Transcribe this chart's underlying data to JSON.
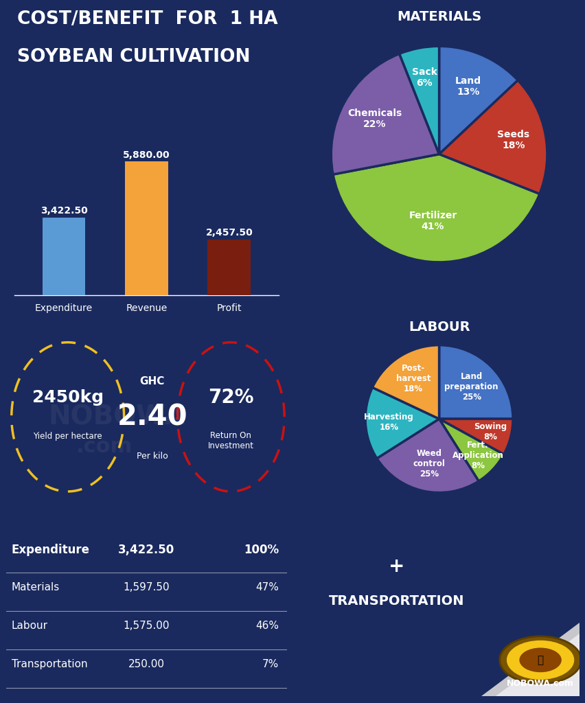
{
  "bg_color": "#1a2a5e",
  "title_line1": "COST/BENEFIT  FOR  1 HA",
  "title_line2": "SOYBEAN CULTIVATION",
  "bar_categories": [
    "Expenditure",
    "Revenue",
    "Profit"
  ],
  "bar_values": [
    3422.5,
    5880.0,
    2457.5
  ],
  "bar_colors": [
    "#5b9bd5",
    "#f4a23a",
    "#7a1e10"
  ],
  "bar_labels": [
    "3,422.50",
    "5,880.00",
    "2,457.50"
  ],
  "materials_title": "MATERIALS",
  "materials_values": [
    13,
    18,
    41,
    22,
    6
  ],
  "materials_labels": [
    "Land\n13%",
    "Seeds\n18%",
    "Fertilizer\n41%",
    "Chemicals\n22%",
    "Sack\n6%"
  ],
  "materials_colors": [
    "#4472c4",
    "#c0392b",
    "#8dc63f",
    "#7b5ea7",
    "#2cb5c0"
  ],
  "labour_title": "LABOUR",
  "labour_values": [
    25,
    8,
    8,
    25,
    16,
    18
  ],
  "labour_labels": [
    "Land\npreparation\n25%",
    "Sowing\n8%",
    "Fert.\nApplication\n8%",
    "Weed\ncontrol\n25%",
    "Harvesting\n16%",
    "Post-\nharvest\n18%"
  ],
  "labour_colors": [
    "#4472c4",
    "#c0392b",
    "#8dc63f",
    "#7b5ea7",
    "#2cb5c0",
    "#f4a23a"
  ],
  "yield_kg": "2450kg",
  "yield_label": "Yield per hectare",
  "price_ghc": "GHC",
  "price_val": "2.40",
  "price_label": "Per kilo",
  "roi_val": "72%",
  "roi_label": "Return On\nInvestment",
  "table_rows": [
    [
      "Expenditure",
      "3,422.50",
      "100%"
    ],
    [
      "Materials",
      "1,597.50",
      "47%"
    ],
    [
      "Labour",
      "1,575.00",
      "46%"
    ],
    [
      "Transportation",
      "250.00",
      "7%"
    ]
  ],
  "transport_label": "+\nTRANSPORTATION"
}
